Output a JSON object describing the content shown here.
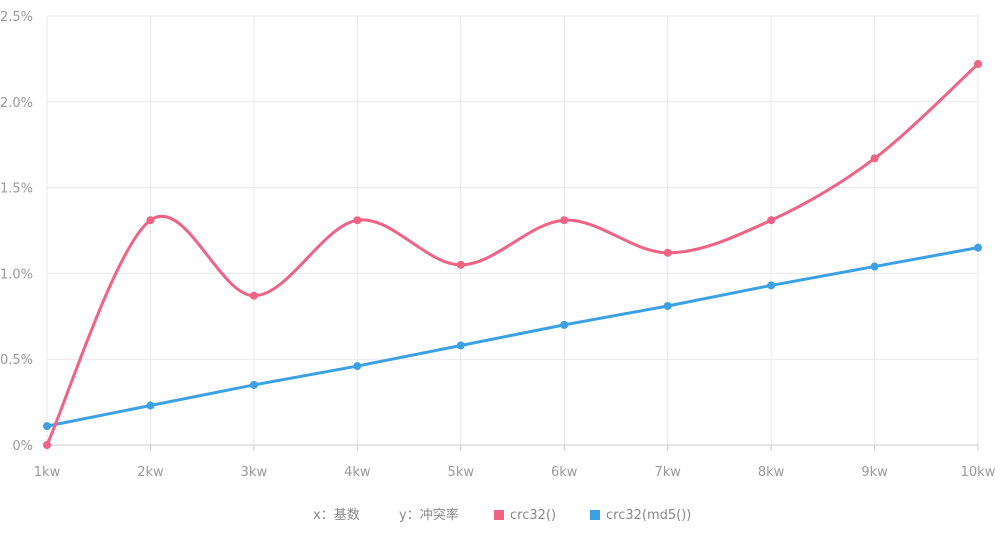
{
  "chart_data": {
    "type": "line",
    "title": "",
    "xlabel": "",
    "ylabel": "",
    "categories": [
      "1kw",
      "2kw",
      "3kw",
      "4kw",
      "5kw",
      "6kw",
      "7kw",
      "8kw",
      "9kw",
      "10kw"
    ],
    "y_ticks": [
      "0%",
      "0.5%",
      "1.0%",
      "1.5%",
      "2.0%",
      "2.5%"
    ],
    "y_tick_values": [
      0,
      0.5,
      1.0,
      1.5,
      2.0,
      2.5
    ],
    "ylim": [
      0,
      2.5
    ],
    "grid": true,
    "legend_position": "bottom",
    "legend": {
      "x_note": "x：基数",
      "y_note": "y：冲突率"
    },
    "series": [
      {
        "name": "crc32()",
        "color": "#f06384",
        "smooth": true,
        "values": [
          0.0,
          1.31,
          0.87,
          1.31,
          1.05,
          1.31,
          1.12,
          1.31,
          1.67,
          2.22
        ]
      },
      {
        "name": "crc32(md5())",
        "color": "#3ba1e3",
        "smooth": false,
        "values": [
          0.11,
          0.23,
          0.35,
          0.46,
          0.58,
          0.7,
          0.81,
          0.93,
          1.04,
          1.15
        ]
      }
    ]
  }
}
